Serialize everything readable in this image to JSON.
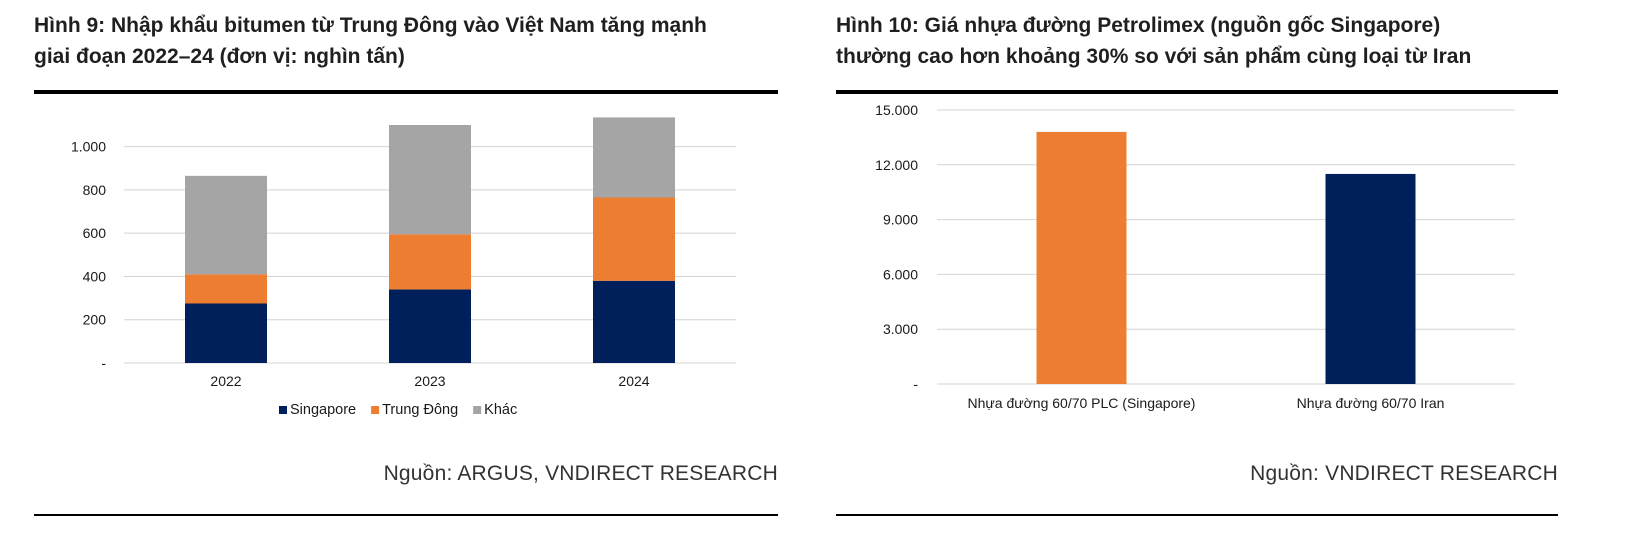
{
  "left": {
    "title_line1": "Hình 9: Nhập khẩu bitumen từ Trung Đông vào Việt Nam tăng mạnh",
    "title_line2": "giai đoạn 2022–24 (đơn vị: nghìn tấn)",
    "source": "Nguồn: ARGUS, VNDIRECT RESEARCH"
  },
  "right": {
    "title_line1": "Hình 10: Giá nhựa đường Petrolimex (nguồn gốc Singapore)",
    "title_line2": "thường cao hơn khoảng 30% so với sản phẩm cùng loại từ Iran",
    "source": "Nguồn: VNDIRECT RESEARCH"
  },
  "chart_data": [
    {
      "type": "bar",
      "stacked": true,
      "categories": [
        "2022",
        "2023",
        "2024"
      ],
      "series": [
        {
          "name": "Singapore",
          "values": [
            275,
            340,
            380
          ],
          "color": "#00205b"
        },
        {
          "name": "Trung Đông",
          "values": [
            135,
            255,
            385
          ],
          "color": "#ed7d31"
        },
        {
          "name": "Khác",
          "values": [
            455,
            505,
            370
          ],
          "color": "#a5a5a5"
        }
      ],
      "ylim": [
        0,
        1100
      ],
      "yticks": [
        0,
        200,
        400,
        600,
        800,
        1000
      ],
      "ytick_labels": [
        "-",
        "200",
        "400",
        "600",
        "800",
        "1.000"
      ],
      "grid": true,
      "legend_position": "bottom"
    },
    {
      "type": "bar",
      "categories": [
        "Nhựa đường 60/70 PLC (Singapore)",
        "Nhựa đường 60/70 Iran"
      ],
      "values": [
        13800,
        11500
      ],
      "colors": [
        "#ed7d31",
        "#00205b"
      ],
      "ylim": [
        0,
        15000
      ],
      "yticks": [
        0,
        3000,
        6000,
        9000,
        12000,
        15000
      ],
      "ytick_labels": [
        "-",
        "3.000",
        "6.000",
        "9.000",
        "12.000",
        "15.000"
      ],
      "grid": true
    }
  ]
}
